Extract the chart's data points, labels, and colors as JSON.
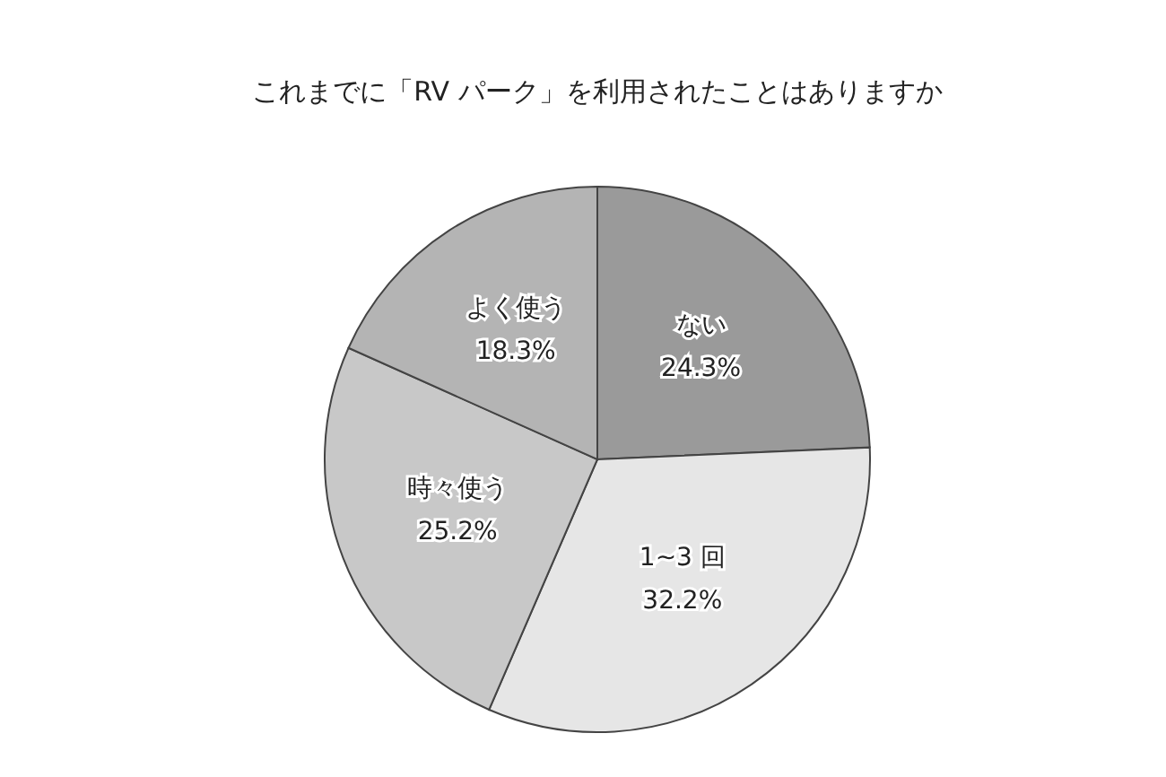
{
  "chart_data": {
    "type": "pie",
    "title": "これまでに「RV パーク」を利用されたことはありますか",
    "categories": [
      "ない",
      "1~3 回",
      "時々使う",
      "よく使う"
    ],
    "values": [
      24.3,
      32.2,
      25.2,
      18.3
    ],
    "value_labels": [
      "24.3%",
      "32.2%",
      "25.2%",
      "18.3%"
    ],
    "colors": [
      "#9a9a9a",
      "#e6e6e6",
      "#c8c8c8",
      "#b4b4b4"
    ],
    "legend": false
  }
}
